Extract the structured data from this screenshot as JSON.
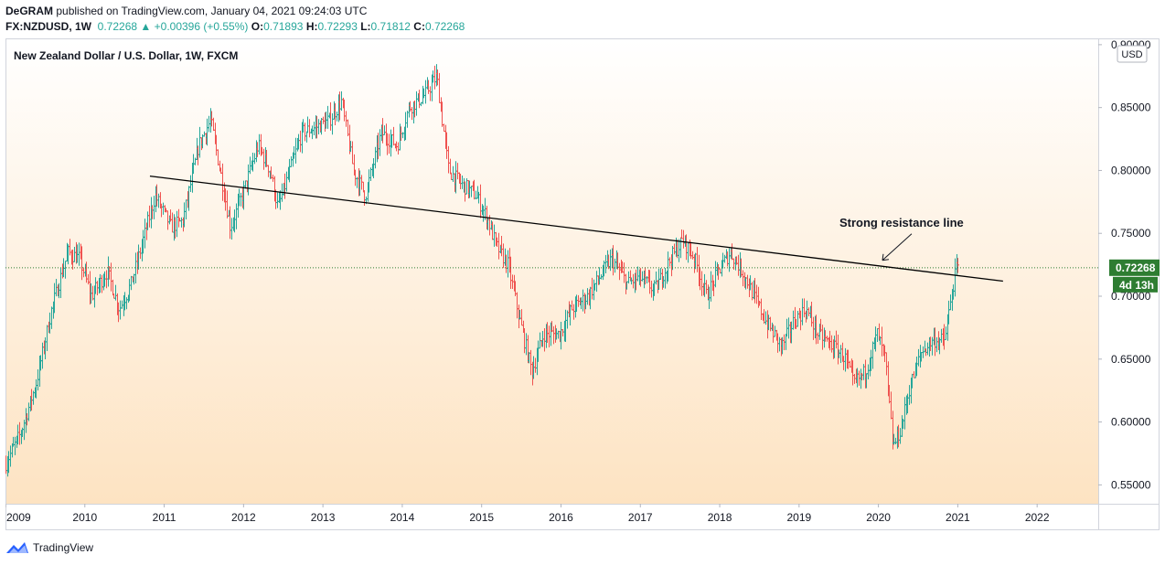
{
  "header": {
    "publisher": "DeGRAM",
    "published_text": "published on TradingView.com, January 04, 2021 09:24:03 UTC",
    "symbol": "FX:NZDUSD, 1W",
    "last": "0.72268",
    "triangle": "▲",
    "change": "+0.00396 (+0.55%)",
    "open_label": "O:",
    "open": "0.71893",
    "high_label": "H:",
    "high": "0.72293",
    "low_label": "L:",
    "low": "0.71812",
    "close_label": "C:",
    "close": "0.72268"
  },
  "instrument_title": "New Zealand Dollar / U.S. Dollar, 1W, FXCM",
  "footer": {
    "brand": "TradingView",
    "icon": "tradingview-logo-icon"
  },
  "colors": {
    "up": "#26a69a",
    "down": "#ef5350",
    "price_tag": "#2e7d32",
    "bg_top": "#ffffff",
    "bg_bottom": "#fde3c2"
  },
  "chart_data": {
    "type": "candlestick",
    "currency": "USD",
    "y_ticks": [
      "0.90000",
      "0.85000",
      "0.80000",
      "0.75000",
      "0.70000",
      "0.65000",
      "0.60000",
      "0.55000"
    ],
    "x_ticks": [
      "2009",
      "2010",
      "2011",
      "2012",
      "2013",
      "2014",
      "2015",
      "2016",
      "2017",
      "2018",
      "2019",
      "2020",
      "2021",
      "2022"
    ],
    "ylim": [
      0.535,
      0.905
    ],
    "xlim": [
      2009.0,
      2022.77
    ],
    "last_price": "0.72268",
    "countdown": "4d 13h",
    "trendline": {
      "from": {
        "x": 2010.82,
        "y": 0.7955
      },
      "to": {
        "x": 2021.57,
        "y": 0.712
      }
    },
    "annotation": {
      "text": "Strong resistance line",
      "arrow_to": {
        "x": 2020.05,
        "y": 0.7285
      }
    },
    "price_path": [
      [
        2009.0,
        0.565
      ],
      [
        2009.2,
        0.59
      ],
      [
        2009.4,
        0.63
      ],
      [
        2009.6,
        0.69
      ],
      [
        2009.8,
        0.735
      ],
      [
        2009.95,
        0.73
      ],
      [
        2010.1,
        0.7
      ],
      [
        2010.3,
        0.72
      ],
      [
        2010.45,
        0.69
      ],
      [
        2010.6,
        0.71
      ],
      [
        2010.75,
        0.745
      ],
      [
        2010.9,
        0.78
      ],
      [
        2011.1,
        0.755
      ],
      [
        2011.25,
        0.76
      ],
      [
        2011.45,
        0.82
      ],
      [
        2011.6,
        0.84
      ],
      [
        2011.72,
        0.8
      ],
      [
        2011.85,
        0.755
      ],
      [
        2012.0,
        0.78
      ],
      [
        2012.2,
        0.82
      ],
      [
        2012.35,
        0.8
      ],
      [
        2012.45,
        0.77
      ],
      [
        2012.6,
        0.8
      ],
      [
        2012.75,
        0.83
      ],
      [
        2012.95,
        0.835
      ],
      [
        2013.1,
        0.84
      ],
      [
        2013.25,
        0.855
      ],
      [
        2013.4,
        0.8
      ],
      [
        2013.55,
        0.78
      ],
      [
        2013.75,
        0.83
      ],
      [
        2013.95,
        0.82
      ],
      [
        2014.1,
        0.85
      ],
      [
        2014.3,
        0.86
      ],
      [
        2014.45,
        0.875
      ],
      [
        2014.6,
        0.8
      ],
      [
        2014.75,
        0.79
      ],
      [
        2014.95,
        0.78
      ],
      [
        2015.1,
        0.76
      ],
      [
        2015.2,
        0.74
      ],
      [
        2015.35,
        0.725
      ],
      [
        2015.5,
        0.68
      ],
      [
        2015.65,
        0.64
      ],
      [
        2015.8,
        0.67
      ],
      [
        2016.0,
        0.67
      ],
      [
        2016.15,
        0.69
      ],
      [
        2016.35,
        0.7
      ],
      [
        2016.5,
        0.715
      ],
      [
        2016.65,
        0.73
      ],
      [
        2016.85,
        0.71
      ],
      [
        2017.0,
        0.715
      ],
      [
        2017.2,
        0.705
      ],
      [
        2017.4,
        0.73
      ],
      [
        2017.55,
        0.745
      ],
      [
        2017.7,
        0.73
      ],
      [
        2017.85,
        0.7
      ],
      [
        2018.0,
        0.72
      ],
      [
        2018.15,
        0.735
      ],
      [
        2018.3,
        0.72
      ],
      [
        2018.45,
        0.7
      ],
      [
        2018.6,
        0.68
      ],
      [
        2018.8,
        0.66
      ],
      [
        2018.95,
        0.68
      ],
      [
        2019.1,
        0.69
      ],
      [
        2019.25,
        0.67
      ],
      [
        2019.45,
        0.66
      ],
      [
        2019.6,
        0.65
      ],
      [
        2019.7,
        0.63
      ],
      [
        2019.85,
        0.64
      ],
      [
        2020.0,
        0.67
      ],
      [
        2020.1,
        0.65
      ],
      [
        2020.2,
        0.58
      ],
      [
        2020.3,
        0.595
      ],
      [
        2020.4,
        0.625
      ],
      [
        2020.55,
        0.655
      ],
      [
        2020.7,
        0.665
      ],
      [
        2020.85,
        0.665
      ],
      [
        2020.95,
        0.705
      ],
      [
        2021.0,
        0.7227
      ]
    ]
  }
}
